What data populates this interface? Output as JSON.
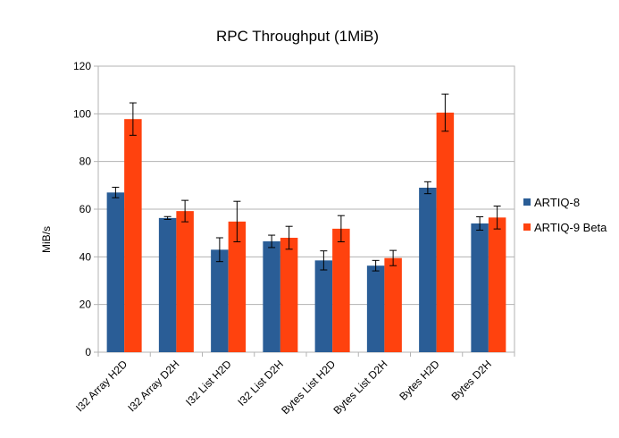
{
  "chart_data": {
    "type": "bar",
    "title": "RPC Throughput (1MiB)",
    "xlabel": "",
    "ylabel": "MiB/s",
    "ylim": [
      0,
      120
    ],
    "yticks": [
      0,
      20,
      40,
      60,
      80,
      100,
      120
    ],
    "grid": "horizontal",
    "legend_position": "right",
    "categories": [
      "I32 Array H2D",
      "I32 Array D2H",
      "I32 List H2D",
      "I32 List D2H",
      "Bytes List H2D",
      "Bytes List D2H",
      "Bytes H2D",
      "Bytes D2H"
    ],
    "series": [
      {
        "name": "ARTIQ-8",
        "color": "#2a5d96",
        "values": [
          67,
          56.3,
          43,
          46.5,
          38.5,
          36.3,
          69,
          54
        ],
        "error": [
          2.2,
          0.6,
          5,
          2.6,
          4,
          2.2,
          2.5,
          2.8
        ]
      },
      {
        "name": "ARTIQ-9 Beta",
        "color": "#ff420e",
        "values": [
          97.8,
          59.2,
          54.8,
          48,
          51.8,
          39.5,
          100.5,
          56.5
        ],
        "error": [
          6.8,
          4.5,
          8.5,
          4.8,
          5.5,
          3.2,
          7.8,
          4.8
        ]
      }
    ]
  }
}
